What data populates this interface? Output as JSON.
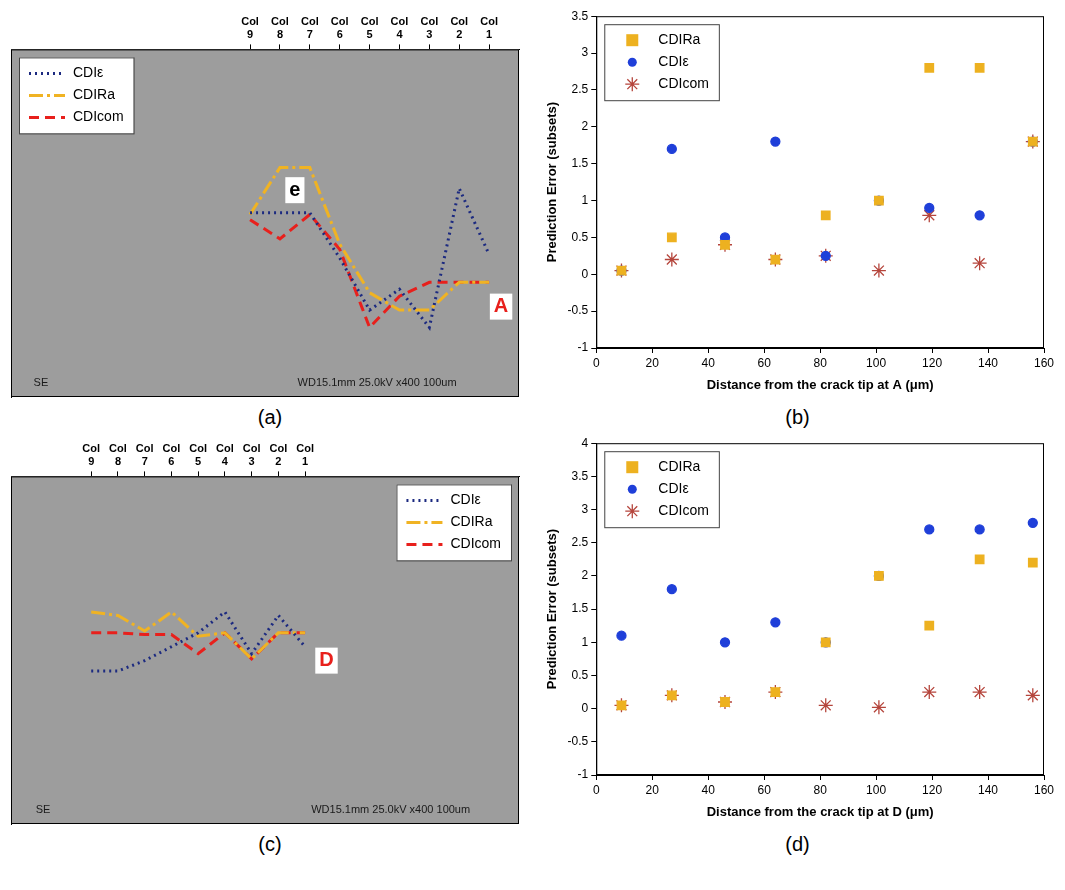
{
  "chart_data": [
    {
      "panel_label": "(a)",
      "type": "line",
      "x": [
        9,
        8,
        7,
        6,
        5,
        4,
        3,
        2,
        1
      ],
      "xlim": [
        17,
        0
      ],
      "xticks": [
        {
          "value": 9,
          "label": "Col 9"
        },
        {
          "value": 8,
          "label": "Col 8"
        },
        {
          "value": 7,
          "label": "Col 7"
        },
        {
          "value": 6,
          "label": "Col 6"
        },
        {
          "value": 5,
          "label": "Col 5"
        },
        {
          "value": 4,
          "label": "Col 4"
        },
        {
          "value": 3,
          "label": "Col 3"
        },
        {
          "value": 2,
          "label": "Col 2"
        },
        {
          "value": 1,
          "label": "Col 1"
        }
      ],
      "ylim": [
        0,
        100
      ],
      "tick_labels": "x",
      "grid": false,
      "legend": "upper left",
      "series": [
        {
          "name": "CDIε",
          "color": "#1c2a80",
          "line_style": "dotted",
          "values": [
            53,
            53,
            53,
            40,
            25,
            31,
            20,
            60,
            41
          ]
        },
        {
          "name": "CDIRa",
          "color": "#f0b323",
          "line_style": "dashdot",
          "values": [
            52.5,
            66,
            66,
            44,
            30,
            25,
            25,
            33,
            33
          ]
        },
        {
          "name": "CDIcom",
          "color": "#e8201c",
          "line_style": "dashed",
          "values": [
            51,
            45.5,
            52.5,
            42.5,
            20,
            29,
            33,
            33,
            33
          ]
        }
      ],
      "annotations": [
        {
          "text": "e",
          "x": 7.5,
          "y": 59.5,
          "color": "#000000"
        },
        {
          "text": "A",
          "x": 0.6,
          "y": 26,
          "color": "#e8201c"
        },
        {
          "text": "SE",
          "x": 16,
          "y": 4,
          "color": "#1a1a1a"
        },
        {
          "text": "WD15.1mm 25.0kV x400 100um",
          "x": 4.75,
          "y": 4,
          "color": "#1a1a1a"
        }
      ]
    },
    {
      "panel_label": "(b)",
      "type": "scatter",
      "x": [
        9,
        27,
        46,
        64,
        82,
        101,
        119,
        137,
        156
      ],
      "xlim": [
        0,
        160
      ],
      "xticks": [
        0,
        20,
        40,
        60,
        80,
        100,
        120,
        140,
        160
      ],
      "ylim": [
        -1,
        3.5
      ],
      "yticks": [
        -1,
        -0.5,
        0,
        0.5,
        1,
        1.5,
        2,
        2.5,
        3,
        3.5
      ],
      "x_label": "Distance from the crack tip at A (μm)",
      "y_label": "Prediction Error (subsets)",
      "grid": false,
      "legend": "upper left",
      "series": [
        {
          "name": "CDIRa",
          "color": "#edb120",
          "marker": "square",
          "values": [
            0.05,
            0.5,
            0.4,
            0.2,
            0.8,
            1.0,
            2.8,
            2.8,
            1.8
          ]
        },
        {
          "name": "CDIε",
          "color": "#1f3fd9",
          "marker": "circle",
          "values": [
            0.05,
            1.7,
            0.5,
            1.8,
            0.25,
            1.0,
            0.9,
            0.8,
            1.8
          ]
        },
        {
          "name": "CDIcom",
          "color": "#b5453c",
          "marker": "asterisk",
          "values": [
            0.05,
            0.2,
            0.4,
            0.2,
            0.25,
            0.05,
            0.8,
            0.15,
            1.8
          ]
        }
      ]
    },
    {
      "panel_label": "(c)",
      "type": "line",
      "x": [
        9,
        8,
        7,
        6,
        5,
        4,
        3,
        2,
        1
      ],
      "xlim": [
        12,
        -7
      ],
      "xticks": [
        {
          "value": 9,
          "label": "Col 9"
        },
        {
          "value": 8,
          "label": "Col 8"
        },
        {
          "value": 7,
          "label": "Col 7"
        },
        {
          "value": 6,
          "label": "Col 6"
        },
        {
          "value": 5,
          "label": "Col 5"
        },
        {
          "value": 4,
          "label": "Col 4"
        },
        {
          "value": 3,
          "label": "Col 3"
        },
        {
          "value": 2,
          "label": "Col 2"
        },
        {
          "value": 1,
          "label": "Col 1"
        }
      ],
      "ylim": [
        0,
        100
      ],
      "tick_labels": "x",
      "grid": false,
      "legend": "upper right",
      "series": [
        {
          "name": "CDIε",
          "color": "#1c2a80",
          "line_style": "dotted",
          "values": [
            44,
            44,
            47,
            51,
            55,
            61,
            49,
            60,
            51
          ]
        },
        {
          "name": "CDIRa",
          "color": "#f0b323",
          "line_style": "dashdot",
          "values": [
            61,
            60,
            55.5,
            61,
            54,
            55,
            47.5,
            55,
            55
          ]
        },
        {
          "name": "CDIcom",
          "color": "#e8201c",
          "line_style": "dashed",
          "values": [
            55,
            55,
            54.5,
            54.5,
            49,
            55,
            47.5,
            55,
            55
          ]
        }
      ],
      "annotations": [
        {
          "text": "D",
          "x": 0.2,
          "y": 47,
          "color": "#e8201c"
        },
        {
          "text": "SE",
          "x": 10.8,
          "y": 4,
          "color": "#1a1a1a"
        },
        {
          "text": "WD15.1mm 25.0kV x400 100um",
          "x": -2.2,
          "y": 4,
          "color": "#1a1a1a"
        }
      ]
    },
    {
      "panel_label": "(d)",
      "type": "scatter",
      "x": [
        9,
        27,
        46,
        64,
        82,
        101,
        119,
        137,
        156
      ],
      "xlim": [
        0,
        160
      ],
      "xticks": [
        0,
        20,
        40,
        60,
        80,
        100,
        120,
        140,
        160
      ],
      "ylim": [
        -1,
        4
      ],
      "yticks": [
        -1,
        -0.5,
        0,
        0.5,
        1,
        1.5,
        2,
        2.5,
        3,
        3.5,
        4
      ],
      "x_label": "Distance from the crack tip at D (μm)",
      "y_label": "Prediction Error (subsets)",
      "grid": false,
      "legend": "upper left",
      "series": [
        {
          "name": "CDIRa",
          "color": "#edb120",
          "marker": "square",
          "values": [
            0.05,
            0.2,
            0.1,
            0.25,
            1.0,
            2.0,
            1.25,
            2.25,
            2.2
          ]
        },
        {
          "name": "CDIε",
          "color": "#1f3fd9",
          "marker": "circle",
          "values": [
            1.1,
            1.8,
            1.0,
            1.3,
            1.0,
            2.0,
            2.7,
            2.7,
            2.8
          ]
        },
        {
          "name": "CDIcom",
          "color": "#b5453c",
          "marker": "asterisk",
          "values": [
            0.05,
            0.2,
            0.1,
            0.25,
            0.05,
            0.02,
            0.25,
            0.25,
            0.2
          ]
        }
      ]
    }
  ]
}
